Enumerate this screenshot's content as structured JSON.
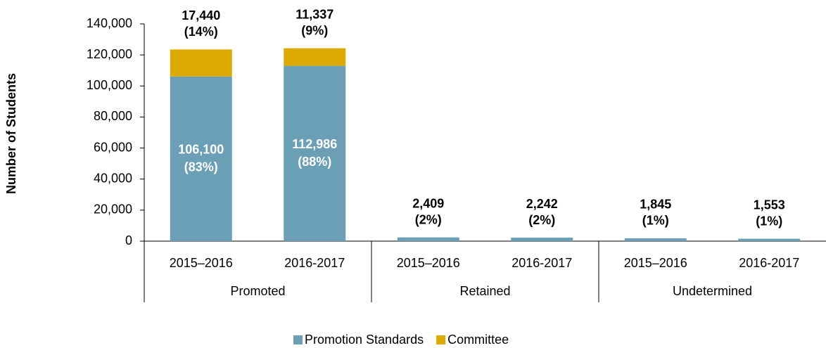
{
  "chart_data": {
    "type": "stacked-bar",
    "y_label": "Number of Students",
    "groups": [
      {
        "name": "Promoted",
        "categories": [
          "2015–2016",
          "2016-2017"
        ]
      },
      {
        "name": "Retained",
        "categories": [
          "2015–2016",
          "2016-2017"
        ]
      },
      {
        "name": "Undetermined",
        "categories": [
          "2015–2016",
          "2016-2017"
        ]
      }
    ],
    "series": [
      {
        "name": "Promotion Standards",
        "color": "#6a9fb5",
        "values": [
          106100,
          112986,
          2409,
          2242,
          1845,
          1553
        ],
        "value_labels": [
          "106,100",
          "112,986",
          "2,409",
          "2,242",
          "1,845",
          "1,553"
        ],
        "share_labels": [
          "(83%)",
          "(88%)",
          "(2%)",
          "(2%)",
          "(1%)",
          "(1%)"
        ]
      },
      {
        "name": "Committee",
        "color": "#dcaa00",
        "values": [
          17440,
          11337,
          null,
          null,
          null,
          null
        ],
        "value_labels": [
          "17,440",
          "11,337",
          null,
          null,
          null,
          null
        ],
        "share_labels": [
          "(14%)",
          "(9%)",
          null,
          null,
          null,
          null
        ]
      }
    ],
    "ylim": [
      0,
      140000
    ],
    "yticks": [
      {
        "value": 0,
        "label": "0"
      },
      {
        "value": 20000,
        "label": "20,000"
      },
      {
        "value": 40000,
        "label": "40,000"
      },
      {
        "value": 60000,
        "label": "60,000"
      },
      {
        "value": 80000,
        "label": "80,000"
      },
      {
        "value": 100000,
        "label": "100,000"
      },
      {
        "value": 120000,
        "label": "120,000"
      },
      {
        "value": 140000,
        "label": "140,000"
      }
    ],
    "legend": "bottom"
  }
}
